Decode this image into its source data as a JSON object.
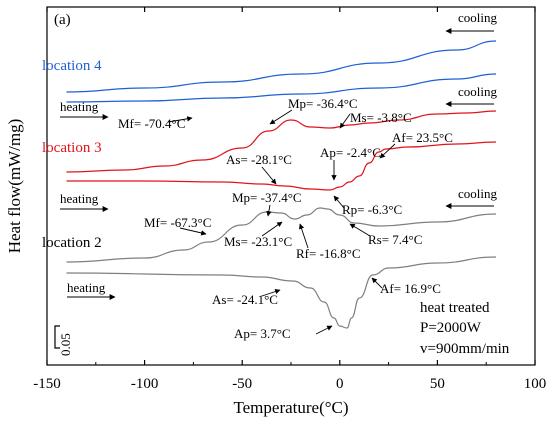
{
  "chart_data": {
    "type": "line",
    "panel_label": "(a)",
    "xlabel": "Temperature(°C)",
    "ylabel": "Heat flow(mW/mg)",
    "xlim": [
      -150,
      100
    ],
    "xticks": [
      -150,
      -100,
      -50,
      0,
      50,
      100
    ],
    "tick_labels": [
      "-150",
      "-100",
      "-50",
      "0",
      "50",
      "100"
    ],
    "scale_bar_label": "0.05",
    "grid": false,
    "colors": {
      "location4": "#1f5fd6",
      "location3": "#e0141c",
      "location2": "#7f7f7f",
      "arrows": "#000000"
    },
    "series": [
      {
        "name": "location 4",
        "mode": "cooling",
        "x": [
          -140,
          -100,
          -60,
          -20,
          20,
          60,
          80
        ],
        "y": [
          92,
          88,
          82,
          74,
          63,
          50,
          41
        ]
      },
      {
        "name": "location 4",
        "mode": "heating",
        "x": [
          -140,
          -100,
          -60,
          -20,
          20,
          60,
          80
        ],
        "y": [
          102,
          101,
          98,
          94,
          88,
          79,
          74
        ]
      },
      {
        "name": "location 3",
        "mode": "cooling",
        "x": [
          -140,
          -110,
          -90,
          -70.4,
          -50,
          -36.4,
          -25,
          -15,
          -5,
          5,
          15,
          30,
          50,
          65,
          80
        ],
        "y": [
          172,
          170,
          166,
          160,
          148,
          131,
          120,
          127,
          128,
          125,
          123,
          120,
          114,
          113,
          111
        ]
      },
      {
        "name": "location 3",
        "mode": "heating",
        "x": [
          -140,
          -100,
          -60,
          -40,
          -28.1,
          -15,
          -5,
          0,
          5,
          10,
          15,
          20,
          23.5,
          35,
          60,
          80
        ],
        "y": [
          181,
          181,
          182,
          184,
          186,
          189,
          190,
          187,
          182,
          176,
          163,
          152,
          149,
          147,
          144,
          142
        ]
      },
      {
        "name": "location 2",
        "mode": "cooling",
        "x": [
          -140,
          -100,
          -80,
          -67.3,
          -50,
          -37.4,
          -30,
          -23.1,
          -16.8,
          -10,
          -6.3,
          0,
          7.4,
          20,
          50,
          80
        ],
        "y": [
          262,
          258,
          250,
          242,
          225,
          212,
          213,
          219,
          215,
          208,
          209,
          215,
          223,
          226,
          222,
          214
        ]
      },
      {
        "name": "location 2",
        "mode": "heating",
        "x": [
          -140,
          -60,
          -40,
          -24.1,
          -15,
          -8,
          -3,
          0,
          3.7,
          6,
          10,
          16.9,
          25,
          50,
          80
        ],
        "y": [
          273,
          275,
          277,
          281,
          288,
          302,
          318,
          326,
          328,
          318,
          298,
          275,
          268,
          263,
          257
        ]
      }
    ],
    "series_labels": [
      "location 4",
      "location 3",
      "location 2"
    ],
    "direction_labels": [
      "cooling",
      "heating",
      "cooling",
      "heating",
      "cooling",
      "heating"
    ],
    "annotations": [
      {
        "text": "Mf= -70.4°C",
        "x": -70.4
      },
      {
        "text": "Mp= -36.4°C",
        "x": -36.4
      },
      {
        "text": "Ms= -3.8°C",
        "x": -3.8
      },
      {
        "text": "As= -28.1°C",
        "x": -28.1
      },
      {
        "text": "Ap= -2.4°C",
        "x": -2.4
      },
      {
        "text": "Af= 23.5°C",
        "x": 23.5
      },
      {
        "text": "Mp= -37.4°C",
        "x": -37.4
      },
      {
        "text": "Mf= -67.3°C",
        "x": -67.3
      },
      {
        "text": "Ms= -23.1°C",
        "x": -23.1
      },
      {
        "text": "Rf= -16.8°C",
        "x": -16.8
      },
      {
        "text": "Rp= -6.3°C",
        "x": -6.3
      },
      {
        "text": "Rs= 7.4°C",
        "x": 7.4
      },
      {
        "text": "As= -24.1°C",
        "x": -24.1
      },
      {
        "text": "Ap= 3.7°C",
        "x": 3.7
      },
      {
        "text": "Af= 16.9°C",
        "x": 16.9
      }
    ],
    "info_lines": [
      "heat treated",
      "P=2000W",
      "v=900mm/min"
    ]
  }
}
